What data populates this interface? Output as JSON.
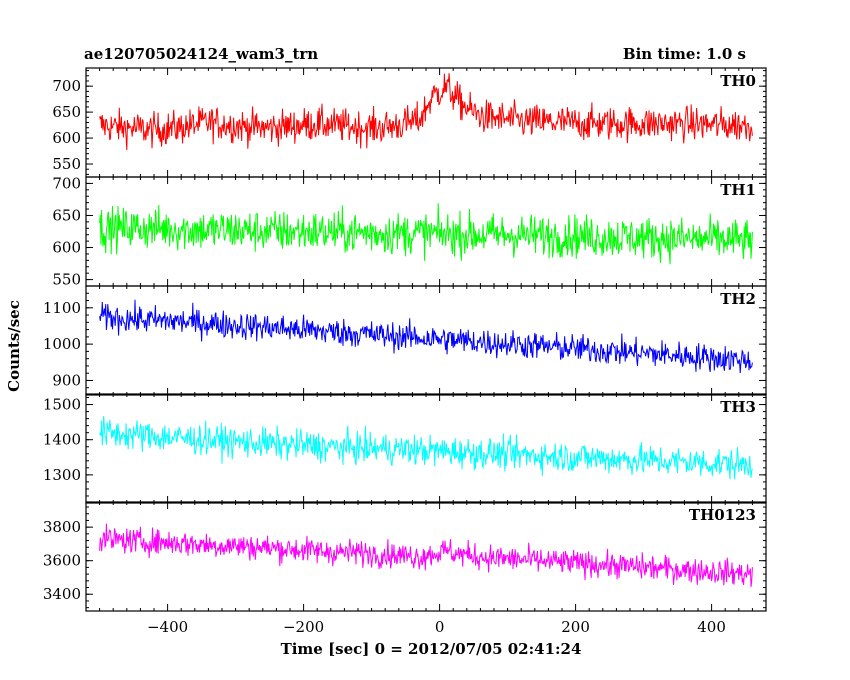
{
  "chart_data": {
    "type": "line",
    "title": "ae120705024124_wam3_trn",
    "subtitle": "Bin time: 1.0 s",
    "xlabel": "Time [sec] 0 = 2012/07/05 02:41:24",
    "ylabel": "Counts/sec",
    "xlim": [
      -520,
      480
    ],
    "x_range": [
      -500,
      460
    ],
    "x_ticks": [
      -400,
      -200,
      0,
      200,
      400
    ],
    "grid": false,
    "panels": [
      {
        "name": "TH0",
        "color": "#ff0000",
        "ylim": [
          525,
          735
        ],
        "y_ticks": [
          550,
          600,
          650,
          700
        ],
        "values": [
          625,
          622,
          620,
          618,
          615,
          618,
          620,
          625,
          630,
          628,
          625,
          622,
          620,
          620,
          622,
          625,
          627,
          626,
          624,
          622,
          620,
          620,
          623,
          628,
          635,
          680,
          700,
          670,
          650,
          640,
          638,
          635,
          632,
          632,
          630,
          630,
          628,
          628,
          628,
          628,
          628,
          628,
          628,
          628,
          628,
          627,
          626,
          625,
          625,
          626
        ],
        "noise": 30
      },
      {
        "name": "TH1",
        "color": "#00ff00",
        "ylim": [
          540,
          710
        ],
        "y_ticks": [
          550,
          600,
          650,
          700
        ],
        "values": [
          630,
          630,
          630,
          630,
          630,
          630,
          628,
          628,
          627,
          627,
          627,
          626,
          626,
          625,
          625,
          625,
          625,
          624,
          624,
          623,
          623,
          623,
          622,
          622,
          622,
          622,
          621,
          621,
          620,
          620,
          620,
          620,
          619,
          619,
          618,
          618,
          618,
          617,
          617,
          616,
          616,
          615,
          615,
          614,
          614,
          613,
          613,
          612,
          612,
          610
        ],
        "noise": 30
      },
      {
        "name": "TH2",
        "color": "#0000ff",
        "ylim": [
          860,
          1160
        ],
        "y_ticks": [
          900,
          1000,
          1100
        ],
        "values": [
          1075,
          1072,
          1070,
          1068,
          1065,
          1065,
          1062,
          1060,
          1058,
          1055,
          1052,
          1050,
          1048,
          1045,
          1043,
          1040,
          1038,
          1035,
          1033,
          1030,
          1028,
          1025,
          1022,
          1020,
          1018,
          1015,
          1012,
          1010,
          1008,
          1005,
          1002,
          1000,
          998,
          995,
          992,
          990,
          987,
          985,
          982,
          980,
          977,
          975,
          972,
          970,
          967,
          965,
          962,
          960,
          957,
          955
        ],
        "noise": 35
      },
      {
        "name": "TH3",
        "color": "#00ffff",
        "ylim": [
          1220,
          1530
        ],
        "y_ticks": [
          1300,
          1400,
          1500
        ],
        "values": [
          1420,
          1418,
          1415,
          1412,
          1410,
          1408,
          1405,
          1402,
          1400,
          1398,
          1395,
          1393,
          1390,
          1388,
          1385,
          1385,
          1383,
          1380,
          1378,
          1377,
          1375,
          1375,
          1373,
          1372,
          1370,
          1368,
          1367,
          1365,
          1363,
          1362,
          1360,
          1358,
          1357,
          1355,
          1353,
          1352,
          1350,
          1348,
          1347,
          1345,
          1343,
          1342,
          1340,
          1338,
          1337,
          1335,
          1333,
          1332,
          1330,
          1328
        ],
        "noise": 40
      },
      {
        "name": "TH0123",
        "color": "#ff00ff",
        "ylim": [
          3300,
          3950
        ],
        "y_ticks": [
          3400,
          3600,
          3800
        ],
        "values": [
          3730,
          3725,
          3720,
          3715,
          3712,
          3710,
          3705,
          3700,
          3695,
          3690,
          3690,
          3685,
          3680,
          3675,
          3670,
          3665,
          3660,
          3655,
          3650,
          3650,
          3645,
          3640,
          3635,
          3630,
          3625,
          3640,
          3660,
          3640,
          3630,
          3620,
          3615,
          3610,
          3605,
          3600,
          3595,
          3590,
          3585,
          3580,
          3575,
          3570,
          3565,
          3560,
          3555,
          3550,
          3545,
          3540,
          3535,
          3530,
          3525,
          3520
        ],
        "noise": 70
      }
    ]
  }
}
